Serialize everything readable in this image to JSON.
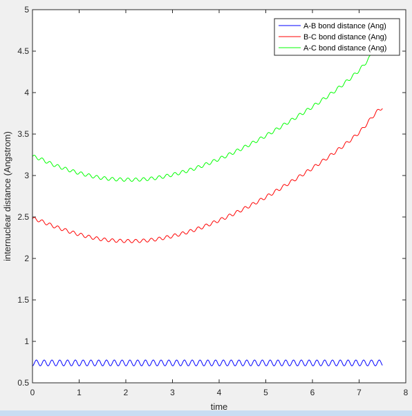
{
  "chart_data": {
    "type": "line",
    "xlabel": "time",
    "ylabel": "internuclear distance (Angstrom)",
    "xlim": [
      0,
      8
    ],
    "ylim": [
      0.5,
      5
    ],
    "xticks": [
      0,
      1,
      2,
      3,
      4,
      5,
      6,
      7,
      8
    ],
    "yticks": [
      0.5,
      1,
      1.5,
      2,
      2.5,
      3,
      3.5,
      4,
      4.5,
      5
    ],
    "xtick_labels": [
      "0",
      "1",
      "2",
      "3",
      "4",
      "5",
      "6",
      "7",
      "8"
    ],
    "ytick_labels": [
      "0.5",
      "1",
      "1.5",
      "2",
      "2.5",
      "3",
      "3.5",
      "4",
      "4.5",
      "5"
    ],
    "grid": false,
    "legend_position": "top-right",
    "series": [
      {
        "name": "A-B bond distance (Ang)",
        "color": "#0000ff",
        "x": [
          0,
          7.5
        ],
        "mean": 0.74,
        "oscillation_amplitude": 0.035,
        "oscillation_period": 0.167,
        "oscillation_phase_deg": -90,
        "description": "constant with rapid oscillation"
      },
      {
        "name": "B-C bond distance (Ang)",
        "color": "#ff0000",
        "x": [
          0,
          0.5,
          1,
          1.5,
          2,
          2.5,
          3,
          3.5,
          4,
          4.5,
          5,
          5.5,
          6,
          6.5,
          7,
          7.5
        ],
        "y": [
          2.48,
          2.38,
          2.29,
          2.23,
          2.21,
          2.22,
          2.27,
          2.35,
          2.46,
          2.59,
          2.74,
          2.91,
          3.09,
          3.29,
          3.52,
          3.82
        ],
        "oscillation_amplitude": 0.02,
        "oscillation_period": 0.167
      },
      {
        "name": "A-C bond distance (Ang)",
        "color": "#00ff00",
        "x": [
          0,
          0.5,
          1,
          1.5,
          2,
          2.5,
          3,
          3.5,
          4,
          4.5,
          5,
          5.5,
          6,
          6.5,
          7,
          7.5
        ],
        "y": [
          3.23,
          3.12,
          3.03,
          2.97,
          2.95,
          2.96,
          3.01,
          3.09,
          3.2,
          3.33,
          3.48,
          3.65,
          3.83,
          4.03,
          4.27,
          4.58
        ],
        "oscillation_amplitude": 0.02,
        "oscillation_period": 0.167
      }
    ]
  }
}
